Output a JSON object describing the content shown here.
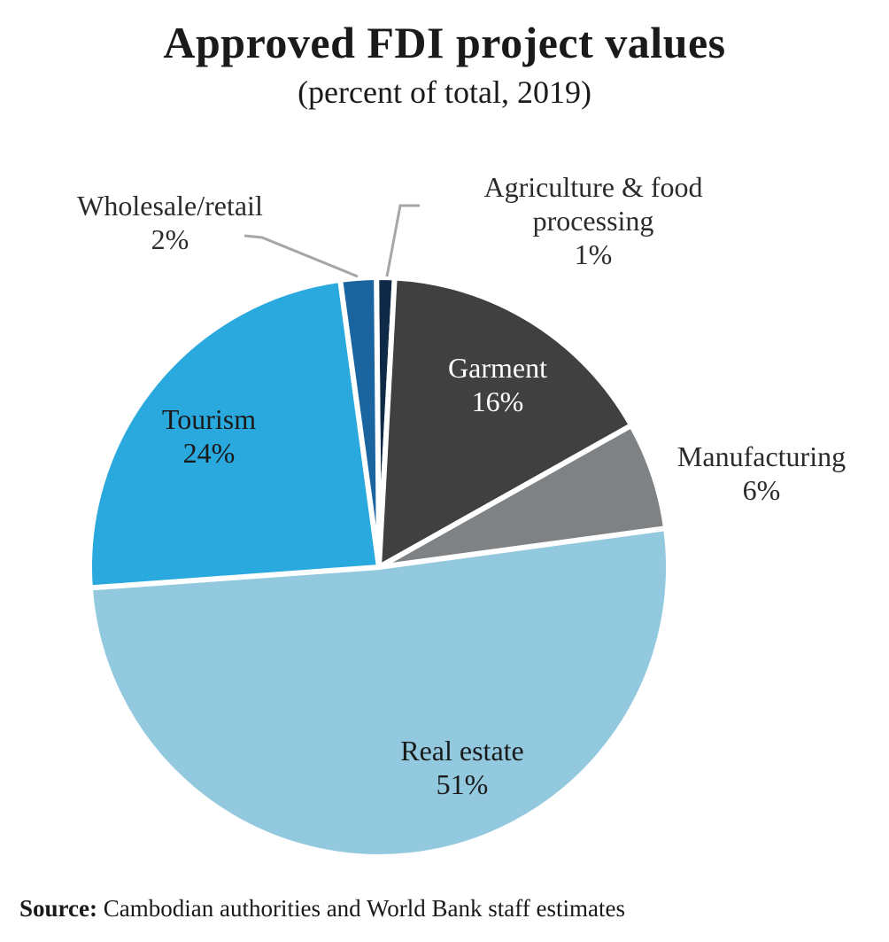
{
  "title": "Approved FDI project values",
  "subtitle": "(percent of total, 2019)",
  "source": {
    "label": "Source:",
    "text": "Cambodian authorities and World Bank staff estimates"
  },
  "chart_data": {
    "type": "pie",
    "title": "Approved FDI project values",
    "subtitle": "(percent of total, 2019)",
    "unit": "percent",
    "slices": [
      {
        "name": "Agriculture & food processing",
        "label_lines": [
          "Agriculture & food",
          "processing"
        ],
        "value": 1,
        "value_label": "1%",
        "color": "#0e2a47",
        "label_color": "#2b2b2b"
      },
      {
        "name": "Garment",
        "label_lines": [
          "Garment"
        ],
        "value": 16,
        "value_label": "16%",
        "color": "#404040",
        "label_color": "#ffffff"
      },
      {
        "name": "Manufacturing",
        "label_lines": [
          "Manufacturing"
        ],
        "value": 6,
        "value_label": "6%",
        "color": "#7f8285",
        "label_color": "#2b2b2b"
      },
      {
        "name": "Real estate",
        "label_lines": [
          "Real estate"
        ],
        "value": 51,
        "value_label": "51%",
        "color": "#92c9df",
        "label_color": "#1a1a1a"
      },
      {
        "name": "Tourism",
        "label_lines": [
          "Tourism"
        ],
        "value": 24,
        "value_label": "24%",
        "color": "#2aa9df",
        "label_color": "#1a1a1a"
      },
      {
        "name": "Wholesale/retail",
        "label_lines": [
          "Wholesale/retail"
        ],
        "value": 2,
        "value_label": "2%",
        "color": "#1a64a0",
        "label_color": "#2b2b2b"
      }
    ],
    "leader_line_color": "#a6a6a6",
    "slice_separator_color": "#ffffff"
  }
}
